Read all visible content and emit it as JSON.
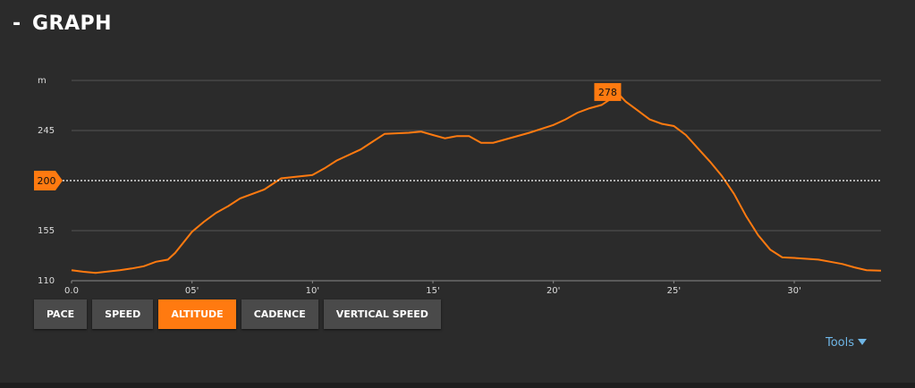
{
  "header": {
    "collapse": "-",
    "title": "GRAPH"
  },
  "chart_data": {
    "type": "line",
    "color": "#ff7a10",
    "x": [
      0,
      0.5,
      1,
      2,
      2.5,
      3,
      3.5,
      4,
      4.3,
      5,
      5.5,
      6,
      6.5,
      7,
      8,
      8.7,
      10,
      10.5,
      11,
      12,
      12.5,
      13,
      14,
      14.5,
      15,
      15.5,
      16,
      16.5,
      17,
      17.5,
      18,
      19,
      20,
      20.5,
      21,
      21.5,
      22,
      22.7,
      23,
      23.5,
      24,
      24.5,
      25,
      25.5,
      26,
      26.5,
      27,
      27.5,
      28,
      28.5,
      29,
      29.5,
      30,
      31,
      31.5,
      32,
      32.5,
      33,
      33.6
    ],
    "values": [
      119.5,
      118,
      117,
      119.5,
      121,
      123,
      127,
      129,
      135,
      154,
      163,
      171,
      177,
      184,
      192,
      202,
      205,
      211,
      218,
      228,
      235,
      242,
      243,
      244,
      241,
      238,
      240,
      240,
      234,
      234,
      237,
      243,
      250,
      255,
      261,
      265,
      268,
      278,
      271,
      263,
      255,
      251,
      249,
      241,
      229,
      217,
      204,
      188,
      168,
      151,
      138,
      131,
      130.5,
      129,
      127,
      125,
      122,
      119.5,
      119
    ],
    "xlim": [
      0,
      33.6
    ],
    "xticks": [
      {
        "value": 0,
        "label": "0.0"
      },
      {
        "value": 5,
        "label": "05'"
      },
      {
        "value": 10,
        "label": "10'"
      },
      {
        "value": 15,
        "label": "15'"
      },
      {
        "value": 20,
        "label": "20'"
      },
      {
        "value": 25,
        "label": "25'"
      },
      {
        "value": 30,
        "label": "30'"
      }
    ],
    "ylim": [
      110,
      290
    ],
    "yticks": [
      110,
      155,
      245,
      {
        "value": 290,
        "label": "m"
      }
    ],
    "grid": true,
    "average": 200
  },
  "tabs": [
    "PACE",
    "SPEED",
    "ALTITUDE",
    "CADENCE",
    "VERTICAL SPEED"
  ],
  "active_tab": 2,
  "tools": "Tools"
}
